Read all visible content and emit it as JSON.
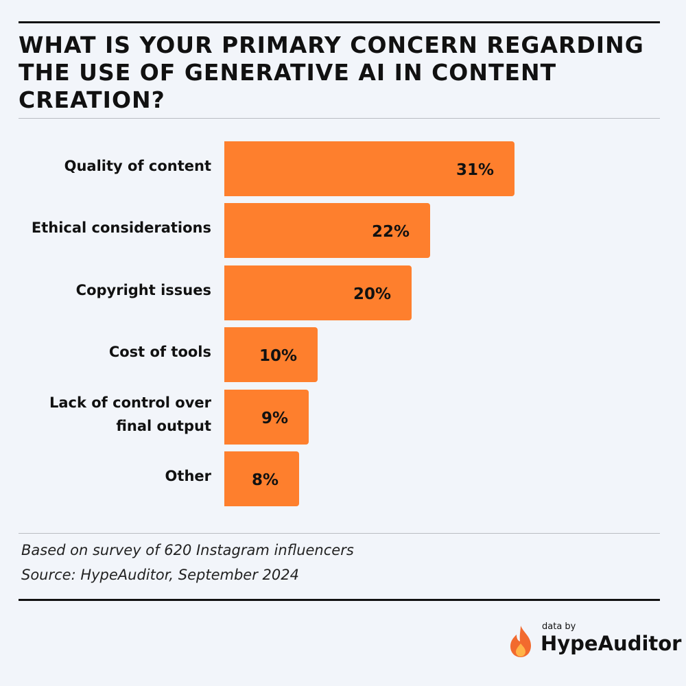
{
  "chart_data": {
    "type": "bar",
    "orientation": "horizontal",
    "title": "What is your primary concern regarding the use of generative AI in content creation?",
    "categories": [
      "Quality of content",
      "Ethical considerations",
      "Copyright issues",
      "Cost of tools",
      "Lack of control over final output",
      "Other"
    ],
    "values": [
      31,
      22,
      20,
      10,
      9,
      8
    ],
    "value_labels": [
      "31%",
      "22%",
      "20%",
      "10%",
      "9%",
      "8%"
    ],
    "unit": "%",
    "bar_color": "#fe7f2d",
    "grid": false,
    "legend": "none"
  },
  "footer": {
    "note": "Based on survey of 620 Instagram influencers",
    "source": "Source: HypeAuditor, September 2024"
  },
  "brand": {
    "prefix": "data by",
    "name": "HypeAuditor",
    "color": "#f26a2e"
  }
}
